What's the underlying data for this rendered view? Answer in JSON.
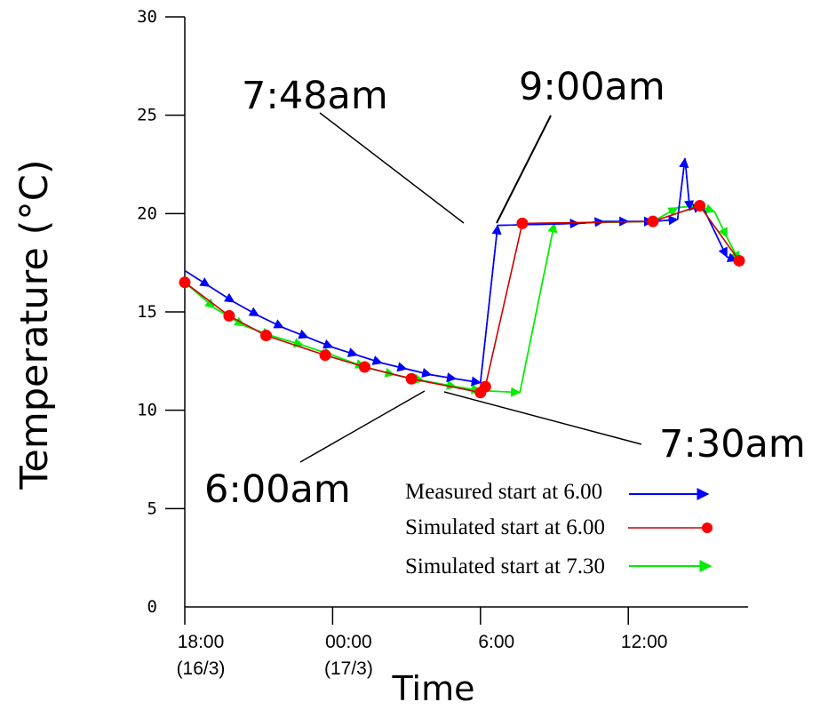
{
  "chart_data": {
    "type": "line",
    "title": "",
    "xlabel": "Time",
    "ylabel": "Temperature (°C)",
    "ylim": [
      0,
      30
    ],
    "xlim_hours": [
      0,
      22.5
    ],
    "grid": false,
    "legend_position": "bottom-right",
    "x_tick_labels": [
      {
        "hours": 0,
        "line1": "18:00",
        "line2": "(16/3)"
      },
      {
        "hours": 6,
        "line1": "00:00",
        "line2": "(17/3)"
      },
      {
        "hours": 12,
        "line1": "6:00",
        "line2": ""
      },
      {
        "hours": 18,
        "line1": "12:00",
        "line2": ""
      }
    ],
    "y_tick_labels": [
      "0",
      "5",
      "10",
      "15",
      "20",
      "25",
      "30"
    ],
    "y_ticks": [
      0,
      5,
      10,
      15,
      20,
      25,
      30
    ],
    "series": [
      {
        "name": "Measured start at 6.00",
        "color": "#0000ff",
        "marker": "arrow",
        "points": [
          [
            0.0,
            17.1
          ],
          [
            1.0,
            16.3
          ],
          [
            2.0,
            15.5
          ],
          [
            3.0,
            14.8
          ],
          [
            4.0,
            14.2
          ],
          [
            5.0,
            13.7
          ],
          [
            6.0,
            13.2
          ],
          [
            7.0,
            12.8
          ],
          [
            8.0,
            12.4
          ],
          [
            9.0,
            12.1
          ],
          [
            10.0,
            11.8
          ],
          [
            11.0,
            11.6
          ],
          [
            12.0,
            11.4
          ],
          [
            12.7,
            19.4
          ],
          [
            16.0,
            19.5
          ],
          [
            17.0,
            19.6
          ],
          [
            18.0,
            19.6
          ],
          [
            19.0,
            19.6
          ],
          [
            20.0,
            19.7
          ],
          [
            20.3,
            22.8
          ],
          [
            20.5,
            20.2
          ],
          [
            21.0,
            20.4
          ],
          [
            22.0,
            17.8
          ],
          [
            22.4,
            17.6
          ]
        ]
      },
      {
        "name": "Simulated start at 6.00",
        "color": "#cc0000",
        "marker": "circle",
        "points": [
          [
            0.0,
            16.5
          ],
          [
            1.8,
            14.8
          ],
          [
            3.3,
            13.8
          ],
          [
            5.7,
            12.8
          ],
          [
            7.3,
            12.2
          ],
          [
            9.2,
            11.6
          ],
          [
            12.0,
            10.9
          ],
          [
            12.2,
            11.2
          ],
          [
            13.7,
            19.5
          ],
          [
            19.0,
            19.6
          ],
          [
            20.9,
            20.4
          ],
          [
            22.5,
            17.6
          ]
        ]
      },
      {
        "name": "Simulated start at 7.30",
        "color": "#00ee00",
        "marker": "arrow",
        "points": [
          [
            0.0,
            16.5
          ],
          [
            1.2,
            15.2
          ],
          [
            2.4,
            14.3
          ],
          [
            3.5,
            13.8
          ],
          [
            4.8,
            13.3
          ],
          [
            6.0,
            12.8
          ],
          [
            7.3,
            12.2
          ],
          [
            8.5,
            11.8
          ],
          [
            9.7,
            11.5
          ],
          [
            11.0,
            11.2
          ],
          [
            12.0,
            11.0
          ],
          [
            13.6,
            10.9
          ],
          [
            15.0,
            19.5
          ],
          [
            19.0,
            19.6
          ],
          [
            20.0,
            20.3
          ],
          [
            20.8,
            20.4
          ],
          [
            21.5,
            20.1
          ],
          [
            22.0,
            18.8
          ],
          [
            22.5,
            17.6
          ]
        ]
      }
    ],
    "annotations": [
      {
        "text": "7:48am",
        "at": [
          13.7,
          19.5
        ]
      },
      {
        "text": "9:00am",
        "at": [
          15.0,
          19.5
        ]
      },
      {
        "text": "7:30am",
        "at": [
          13.5,
          11.0
        ]
      },
      {
        "text": "6:00am",
        "at": [
          12.0,
          11.0
        ]
      }
    ]
  }
}
